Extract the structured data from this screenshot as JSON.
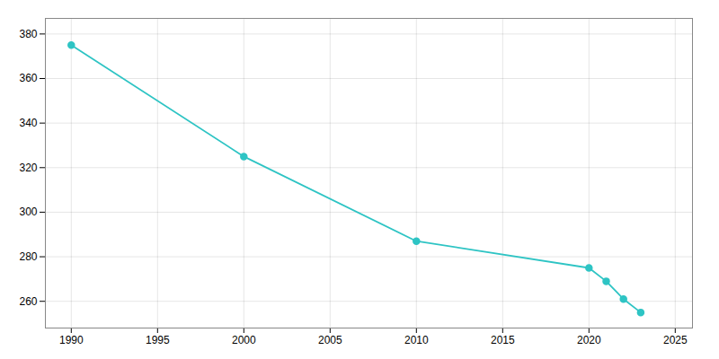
{
  "chart_data": {
    "type": "line",
    "x": [
      1990,
      2000,
      2010,
      2020,
      2021,
      2022,
      2023
    ],
    "values": [
      375,
      325,
      287,
      275,
      269,
      261,
      255
    ],
    "color": "#2ec4c4",
    "marker": "circle",
    "xlim": [
      1988.5,
      2026
    ],
    "ylim": [
      248,
      387
    ],
    "xticks": [
      1990,
      1995,
      2000,
      2005,
      2010,
      2015,
      2020,
      2025
    ],
    "yticks": [
      260,
      280,
      300,
      320,
      340,
      360,
      380
    ],
    "grid": true
  }
}
